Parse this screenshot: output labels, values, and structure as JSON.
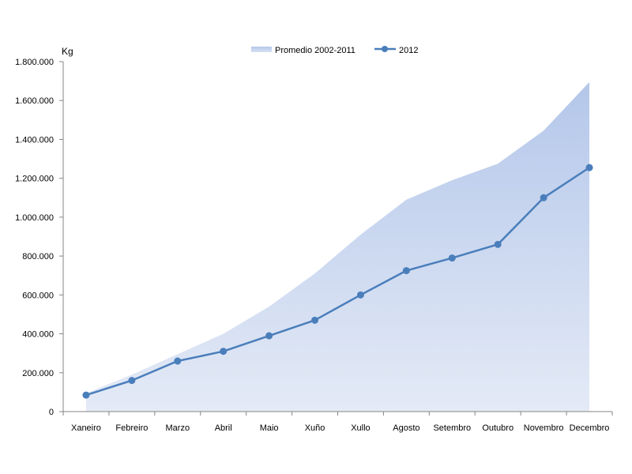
{
  "chart_data": {
    "type": "line",
    "title": "",
    "xlabel": "",
    "ylabel": "Kg",
    "ylim": [
      0,
      1800000
    ],
    "y_ticks": [
      "0",
      "200.000",
      "400.000",
      "600.000",
      "800.000",
      "1.000.000",
      "1.200.000",
      "1.400.000",
      "1.600.000",
      "1.800.000"
    ],
    "y_tick_values": [
      0,
      200000,
      400000,
      600000,
      800000,
      1000000,
      1200000,
      1400000,
      1600000,
      1800000
    ],
    "categories": [
      "Xaneiro",
      "Febreiro",
      "Marzo",
      "Abril",
      "Maio",
      "Xuño",
      "Xullo",
      "Agosto",
      "Setembro",
      "Outubro",
      "Novembro",
      "Decembro"
    ],
    "grid": false,
    "legend_position": "top-center",
    "series": [
      {
        "name": "Promedio 2002-2011",
        "type": "area",
        "color_top": "#b4c7ea",
        "color_bottom": "#e4eaf6",
        "values": [
          95000,
          190000,
          295000,
          400000,
          540000,
          710000,
          910000,
          1090000,
          1190000,
          1275000,
          1445000,
          1695000
        ]
      },
      {
        "name": "2012",
        "type": "line",
        "color": "#4a7ebb",
        "values": [
          85000,
          160000,
          260000,
          310000,
          390000,
          470000,
          600000,
          725000,
          790000,
          860000,
          1100000,
          1255000
        ]
      }
    ]
  }
}
